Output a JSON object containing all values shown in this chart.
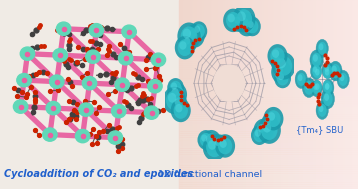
{
  "label1": "Cycloaddition of CO₂ and epoxides",
  "label2": "1D functional channel",
  "label3": "{Tm₄} SBU",
  "label1_color": "#2060cc",
  "label2_color": "#2060cc",
  "label3_color": "#2060cc",
  "bg_left": "#f5f0ec",
  "bg_right_left": "#f0d8cc",
  "bg_right_right": "#f8ece4",
  "teal_dark": "#1a9aaa",
  "teal_mid": "#30bec8",
  "teal_light": "#50d8e0",
  "bond_pink": "#e860a0",
  "node_teal": "#60d8b8",
  "node_edge": "#30a888",
  "node_dot": "#e860a0",
  "co2_c": "#404040",
  "co2_o": "#cc2200",
  "wire_gray": "#888899"
}
